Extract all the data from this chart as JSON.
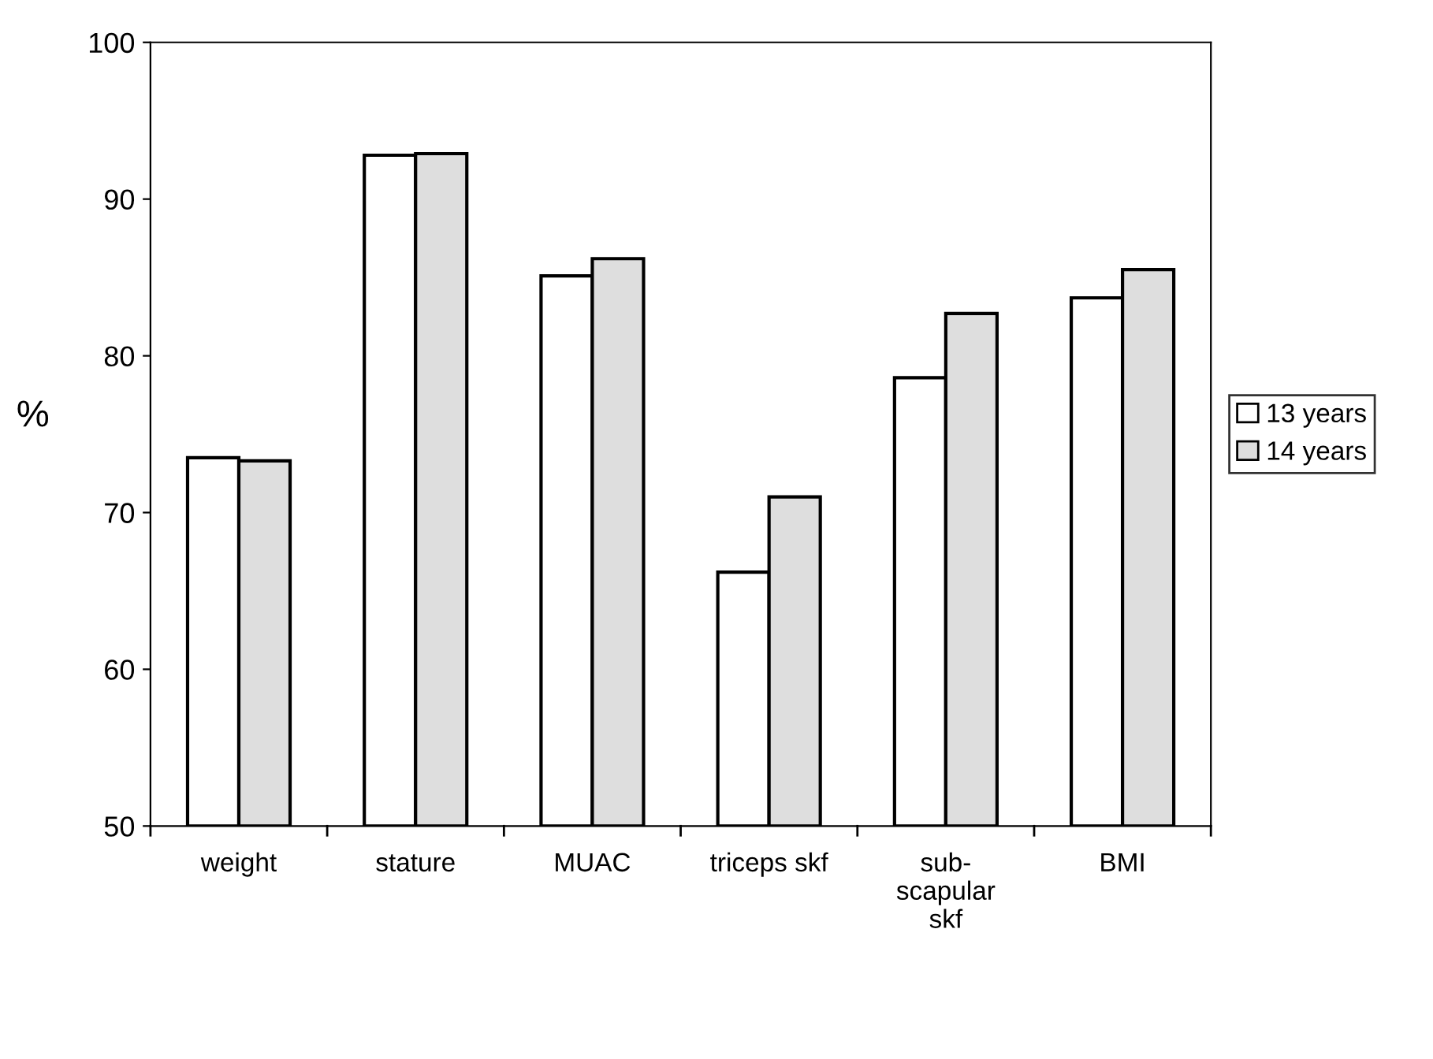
{
  "chart_data": {
    "type": "bar",
    "ylabel": "%",
    "categories": [
      "weight",
      "stature",
      "MUAC",
      "triceps skf",
      "sub-\nscapular\nskf",
      "BMI"
    ],
    "series": [
      {
        "name": "13 years",
        "color": "#ffffff",
        "values": [
          73.5,
          92.8,
          85.1,
          66.2,
          78.6,
          83.7
        ]
      },
      {
        "name": "14 years",
        "color": "#dedede",
        "values": [
          73.3,
          92.9,
          86.2,
          71.0,
          82.7,
          85.5
        ]
      }
    ],
    "ylim": [
      50,
      100
    ],
    "yticks": [
      50,
      60,
      70,
      80,
      90,
      100
    ],
    "grid": false,
    "legend": "right"
  }
}
